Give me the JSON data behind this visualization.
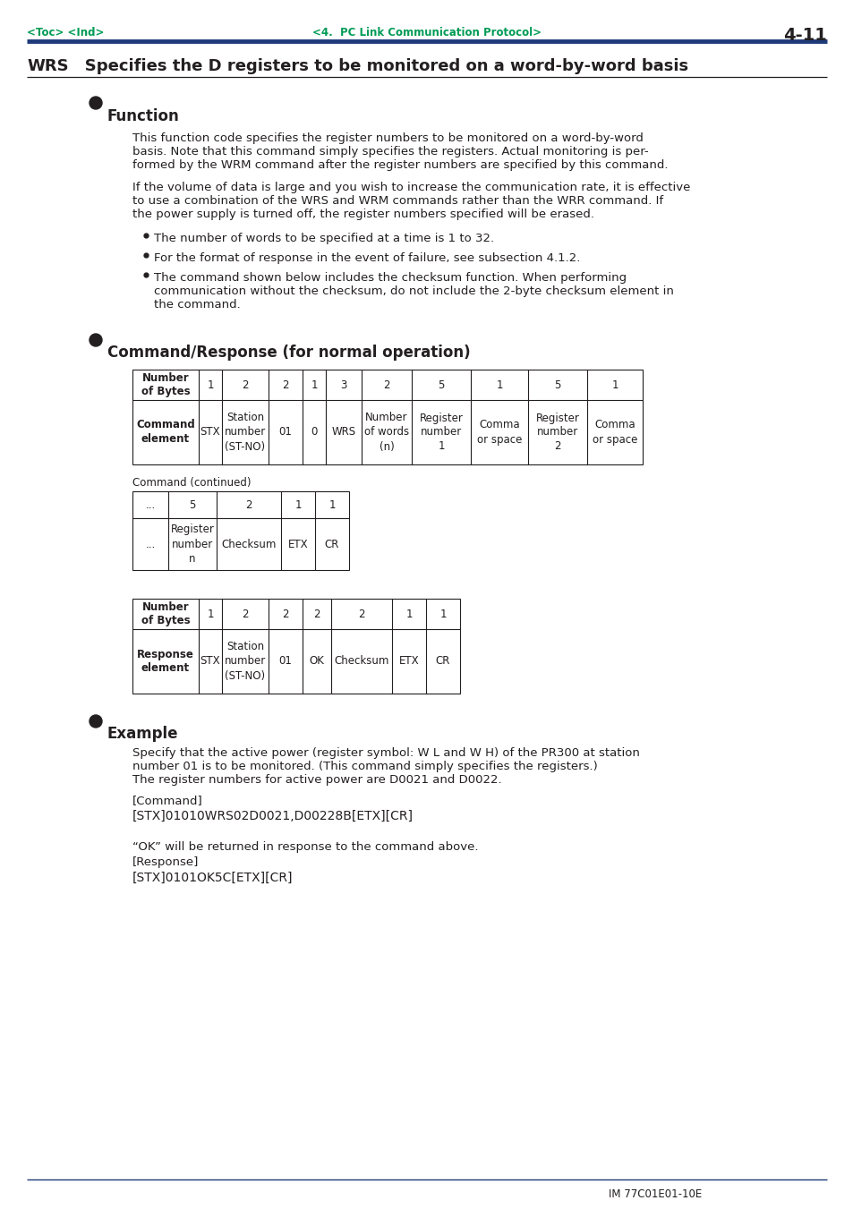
{
  "page_header_left": "<Toc> <Ind>",
  "page_header_center": "<4.  PC Link Communication Protocol>",
  "page_header_right": "4-11",
  "section_title_wrs": "WRS",
  "section_title_rest": "   Specifies the D registers to be monitored on a word-by-word basis",
  "function_heading": "Function",
  "function_text1_lines": [
    "This function code specifies the register numbers to be monitored on a word-by-word",
    "basis. Note that this command simply specifies the registers. Actual monitoring is per-",
    "formed by the WRM command after the register numbers are specified by this command."
  ],
  "function_text2_lines": [
    "If the volume of data is large and you wish to increase the communication rate, it is effective",
    "to use a combination of the WRS and WRM commands rather than the WRR command. If",
    "the power supply is turned off, the register numbers specified will be erased."
  ],
  "bullet1": "The number of words to be specified at a time is 1 to 32.",
  "bullet2": "For the format of response in the event of failure, see subsection 4.1.2.",
  "bullet3_lines": [
    "The command shown below includes the checksum function. When performing",
    "communication without the checksum, do not include the 2-byte checksum element in",
    "the command."
  ],
  "cmd_response_heading": "Command/Response (for normal operation)",
  "cmd_continued_label": "Command (continued)",
  "example_heading": "Example",
  "example_text_lines": [
    "Specify that the active power (register symbol: W L and W H) of the PR300 at station",
    "number 01 is to be monitored. (This command simply specifies the registers.)",
    "The register numbers for active power are D0021 and D0022."
  ],
  "example_cmd_label": "[Command]",
  "example_cmd": "[STX]01010WRS02D0021,D00228B[ETX][CR]",
  "example_resp_note": "“OK” will be returned in response to the command above.",
  "example_resp_label": "[Response]",
  "example_resp": "[STX]0101OK5C[ETX][CR]",
  "footer_text": "IM 77C01E01-10E",
  "header_color": "#009b55",
  "header_line_color": "#1e3a7a",
  "page_bg": "#ffffff",
  "text_color": "#231f20"
}
